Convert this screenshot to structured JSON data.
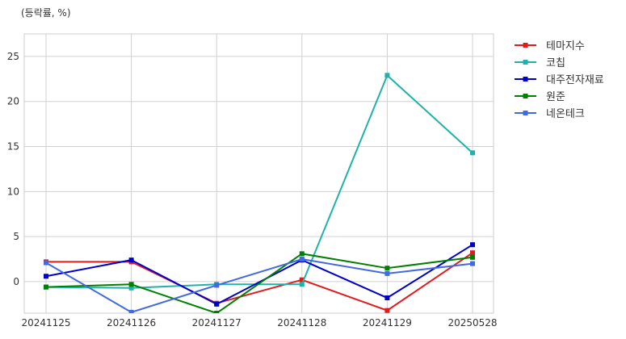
{
  "chart_data": {
    "type": "line",
    "ylabel": "(등락률, %)",
    "categories": [
      "20241125",
      "20241126",
      "20241127",
      "20241128",
      "20241129",
      "20250528"
    ],
    "yticks": [
      0,
      5,
      10,
      15,
      20,
      25
    ],
    "ylim": [
      -3.5,
      27.5
    ],
    "grid": true,
    "legend_position": "outside-top-right",
    "series": [
      {
        "name": "테마지수",
        "color": "#e31a1c",
        "values": [
          2.2,
          2.2,
          -2.4,
          0.2,
          -3.2,
          3.2
        ]
      },
      {
        "name": "코칩",
        "color": "#20b2aa",
        "values": [
          -0.6,
          -0.7,
          -0.3,
          -0.3,
          22.9,
          14.3
        ]
      },
      {
        "name": "대주전자재료",
        "color": "#0000cd",
        "values": [
          0.6,
          2.4,
          -2.5,
          2.4,
          -1.8,
          4.1
        ]
      },
      {
        "name": "원준",
        "color": "#008000",
        "values": [
          -0.6,
          -0.3,
          -3.5,
          3.1,
          1.5,
          2.7
        ]
      },
      {
        "name": "네온테크",
        "color": "#4169e1",
        "values": [
          2.1,
          -3.4,
          -0.4,
          2.5,
          0.9,
          2.0
        ]
      }
    ]
  }
}
